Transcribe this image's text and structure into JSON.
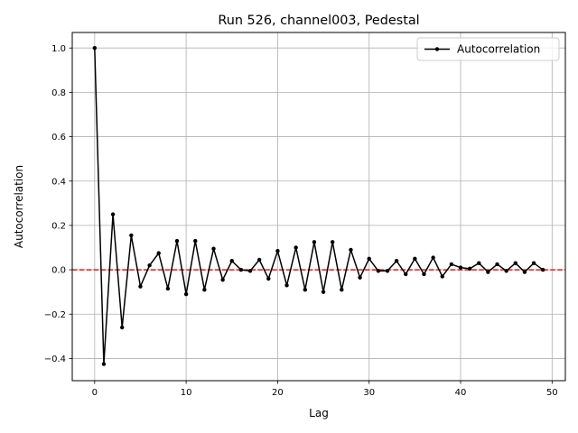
{
  "chart_data": {
    "type": "line",
    "title": "Run 526, channel003, Pedestal",
    "xlabel": "Lag",
    "ylabel": "Autocorrelation",
    "xlim": [
      -2.45,
      51.45
    ],
    "ylim": [
      -0.5,
      1.07
    ],
    "xticks": [
      0,
      10,
      20,
      30,
      40,
      50
    ],
    "yticks": [
      -0.4,
      -0.2,
      0.0,
      0.2,
      0.4,
      0.6,
      0.8,
      1.0
    ],
    "xtick_labels": [
      "0",
      "10",
      "20",
      "30",
      "40",
      "50"
    ],
    "ytick_labels": [
      "−0.4",
      "−0.2",
      "0.0",
      "0.2",
      "0.4",
      "0.6",
      "0.8",
      "1.0"
    ],
    "grid": true,
    "legend": {
      "placement": "top-right",
      "entries": [
        "Autocorrelation"
      ]
    },
    "reference_line": {
      "y": 0.0,
      "color": "#e41a1c",
      "style": "dashed"
    },
    "series": [
      {
        "name": "Autocorrelation",
        "color": "#000000",
        "marker": "circle",
        "x": [
          0,
          1,
          2,
          3,
          4,
          5,
          6,
          7,
          8,
          9,
          10,
          11,
          12,
          13,
          14,
          15,
          16,
          17,
          18,
          19,
          20,
          21,
          22,
          23,
          24,
          25,
          26,
          27,
          28,
          29,
          30,
          31,
          32,
          33,
          34,
          35,
          36,
          37,
          38,
          39,
          40,
          41,
          42,
          43,
          44,
          45,
          46,
          47,
          48,
          49
        ],
        "values": [
          1.0,
          -0.425,
          0.25,
          -0.26,
          0.155,
          -0.075,
          0.02,
          0.075,
          -0.085,
          0.13,
          -0.11,
          0.13,
          -0.09,
          0.095,
          -0.045,
          0.04,
          0.0,
          -0.005,
          0.045,
          -0.04,
          0.085,
          -0.07,
          0.1,
          -0.09,
          0.125,
          -0.1,
          0.125,
          -0.09,
          0.09,
          -0.035,
          0.05,
          -0.005,
          -0.005,
          0.04,
          -0.02,
          0.05,
          -0.02,
          0.055,
          -0.03,
          0.025,
          0.01,
          0.005,
          0.03,
          -0.01,
          0.025,
          -0.005,
          0.03,
          -0.01,
          0.03,
          0.0
        ]
      }
    ]
  }
}
